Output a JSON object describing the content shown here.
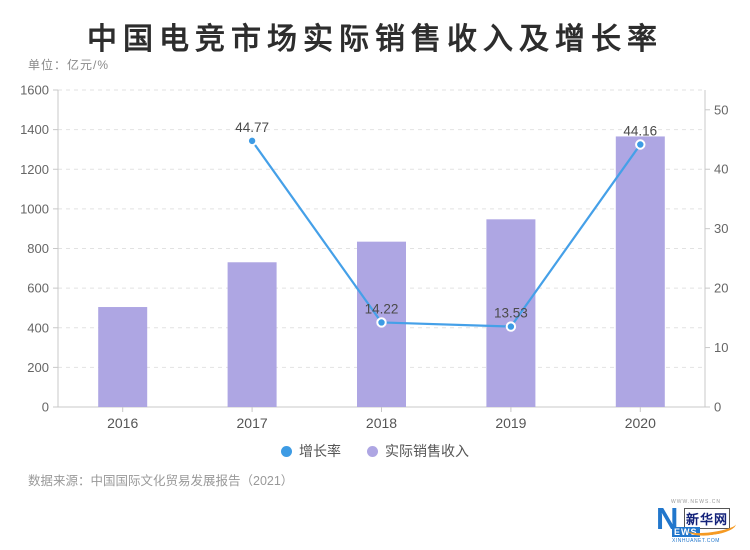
{
  "title": "中国电竞市场实际销售收入及增长率",
  "unit_label": "单位：亿元/%",
  "source_note": "数据来源：中国国际文化贸易发展报告（2021）",
  "legend": {
    "items": [
      {
        "label": "增长率",
        "color": "#3d9be4"
      },
      {
        "label": "实际销售收入",
        "color": "#aea6e3"
      }
    ]
  },
  "logo": {
    "top_text": "WWW.NEWS.CN",
    "n": "N",
    "ews": "EWS",
    "cn_text": "新华网",
    "bottom_text": "XINHUANET.COM"
  },
  "chart_data": {
    "type": "bar",
    "subtype": "bar+line dual-axis",
    "title": "中国电竞市场实际销售收入及增长率",
    "categories": [
      "2016",
      "2017",
      "2018",
      "2019",
      "2020"
    ],
    "series": [
      {
        "name": "实际销售收入",
        "type": "bar",
        "axis": "left",
        "color": "#aea6e3",
        "values": [
          504.6,
          730.5,
          834.5,
          947.3,
          1365.6
        ]
      },
      {
        "name": "增长率",
        "type": "line",
        "axis": "right",
        "color": "#45a0e8",
        "marker_fill": "#3d9be4",
        "marker_stroke": "#ffffff",
        "values": [
          null,
          44.77,
          14.22,
          13.53,
          44.16
        ],
        "labels": [
          "",
          "44.77",
          "14.22",
          "13.53",
          "44.16"
        ]
      }
    ],
    "left_axis": {
      "min": 0,
      "max": 1600,
      "ticks": [
        0,
        200,
        400,
        600,
        800,
        1000,
        1200,
        1400,
        1600
      ]
    },
    "right_axis": {
      "min": 0,
      "max": 53.33,
      "ticks": [
        0,
        10,
        20,
        30,
        40,
        50
      ]
    },
    "grid": "dashed-horizontal",
    "grid_color": "#e2e2e2",
    "axis_line_color": "#c8c8c8",
    "tick_label_color": "#666666",
    "data_label_color": "#4a4a4a",
    "legend_position": "bottom-center"
  }
}
